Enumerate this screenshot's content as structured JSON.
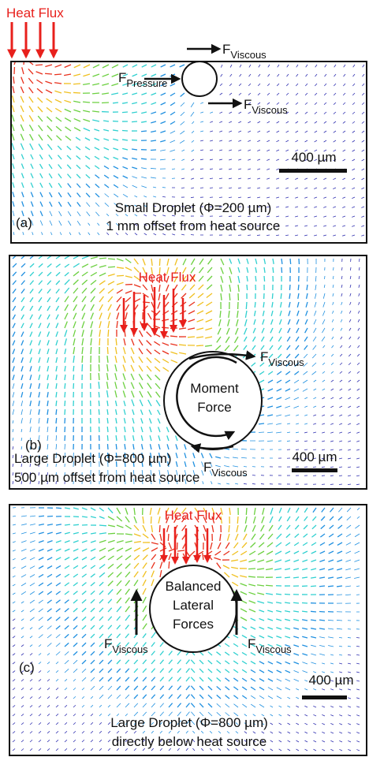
{
  "panels": [
    {
      "label": "(a)",
      "heat_flux": "Heat Flux",
      "forces": [
        {
          "symbol": "F",
          "subscript": "Viscous"
        },
        {
          "symbol": "F",
          "subscript": "Pressure"
        },
        {
          "symbol": "F",
          "subscript": "Viscous"
        }
      ],
      "scale_bar": "400 µm",
      "caption": [
        "Small Droplet (Φ=200 µm)",
        "1 mm offset from heat source"
      ]
    },
    {
      "label": "(b)",
      "heat_flux": "Heat Flux",
      "forces": [
        {
          "symbol": "F",
          "subscript": "Viscous"
        },
        {
          "symbol": "F",
          "subscript": "Viscous"
        }
      ],
      "droplet_text": [
        "Moment",
        "Force"
      ],
      "scale_bar": "400 µm",
      "caption": [
        "Large Droplet (Φ=800 µm)",
        "500 µm offset from heat source"
      ]
    },
    {
      "label": "(c)",
      "heat_flux": "Heat Flux",
      "forces": [
        {
          "symbol": "F",
          "subscript": "Viscous"
        },
        {
          "symbol": "F",
          "subscript": "Viscous"
        }
      ],
      "droplet_text": [
        "Balanced",
        "Lateral",
        "Forces"
      ],
      "scale_bar": "400 µm",
      "caption": [
        "Large Droplet (Φ=800 µm)",
        "directly below heat source"
      ]
    }
  ]
}
